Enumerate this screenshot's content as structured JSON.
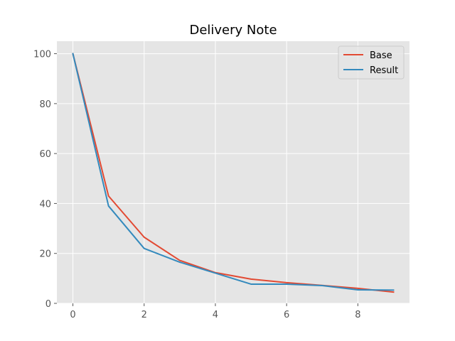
{
  "chart_data": {
    "type": "line",
    "title": "Delivery Note",
    "xlabel": "",
    "ylabel": "",
    "xlim": [
      -0.45,
      9.45
    ],
    "ylim": [
      0,
      105
    ],
    "x_ticks": [
      0,
      2,
      4,
      6,
      8
    ],
    "y_ticks": [
      0,
      20,
      40,
      60,
      80,
      100
    ],
    "grid": true,
    "legend_position": "top-right",
    "x": [
      0,
      1,
      2,
      3,
      4,
      5,
      6,
      7,
      8,
      9
    ],
    "series": [
      {
        "name": "Base",
        "color": "#E24A33",
        "values": [
          100,
          43,
          26.5,
          17.2,
          12.3,
          9.7,
          8.3,
          7.2,
          6.0,
          4.5
        ]
      },
      {
        "name": "Result",
        "color": "#348ABD",
        "values": [
          100,
          39,
          22,
          16.5,
          12.1,
          7.7,
          7.7,
          7.1,
          5.4,
          5.3
        ]
      }
    ]
  }
}
